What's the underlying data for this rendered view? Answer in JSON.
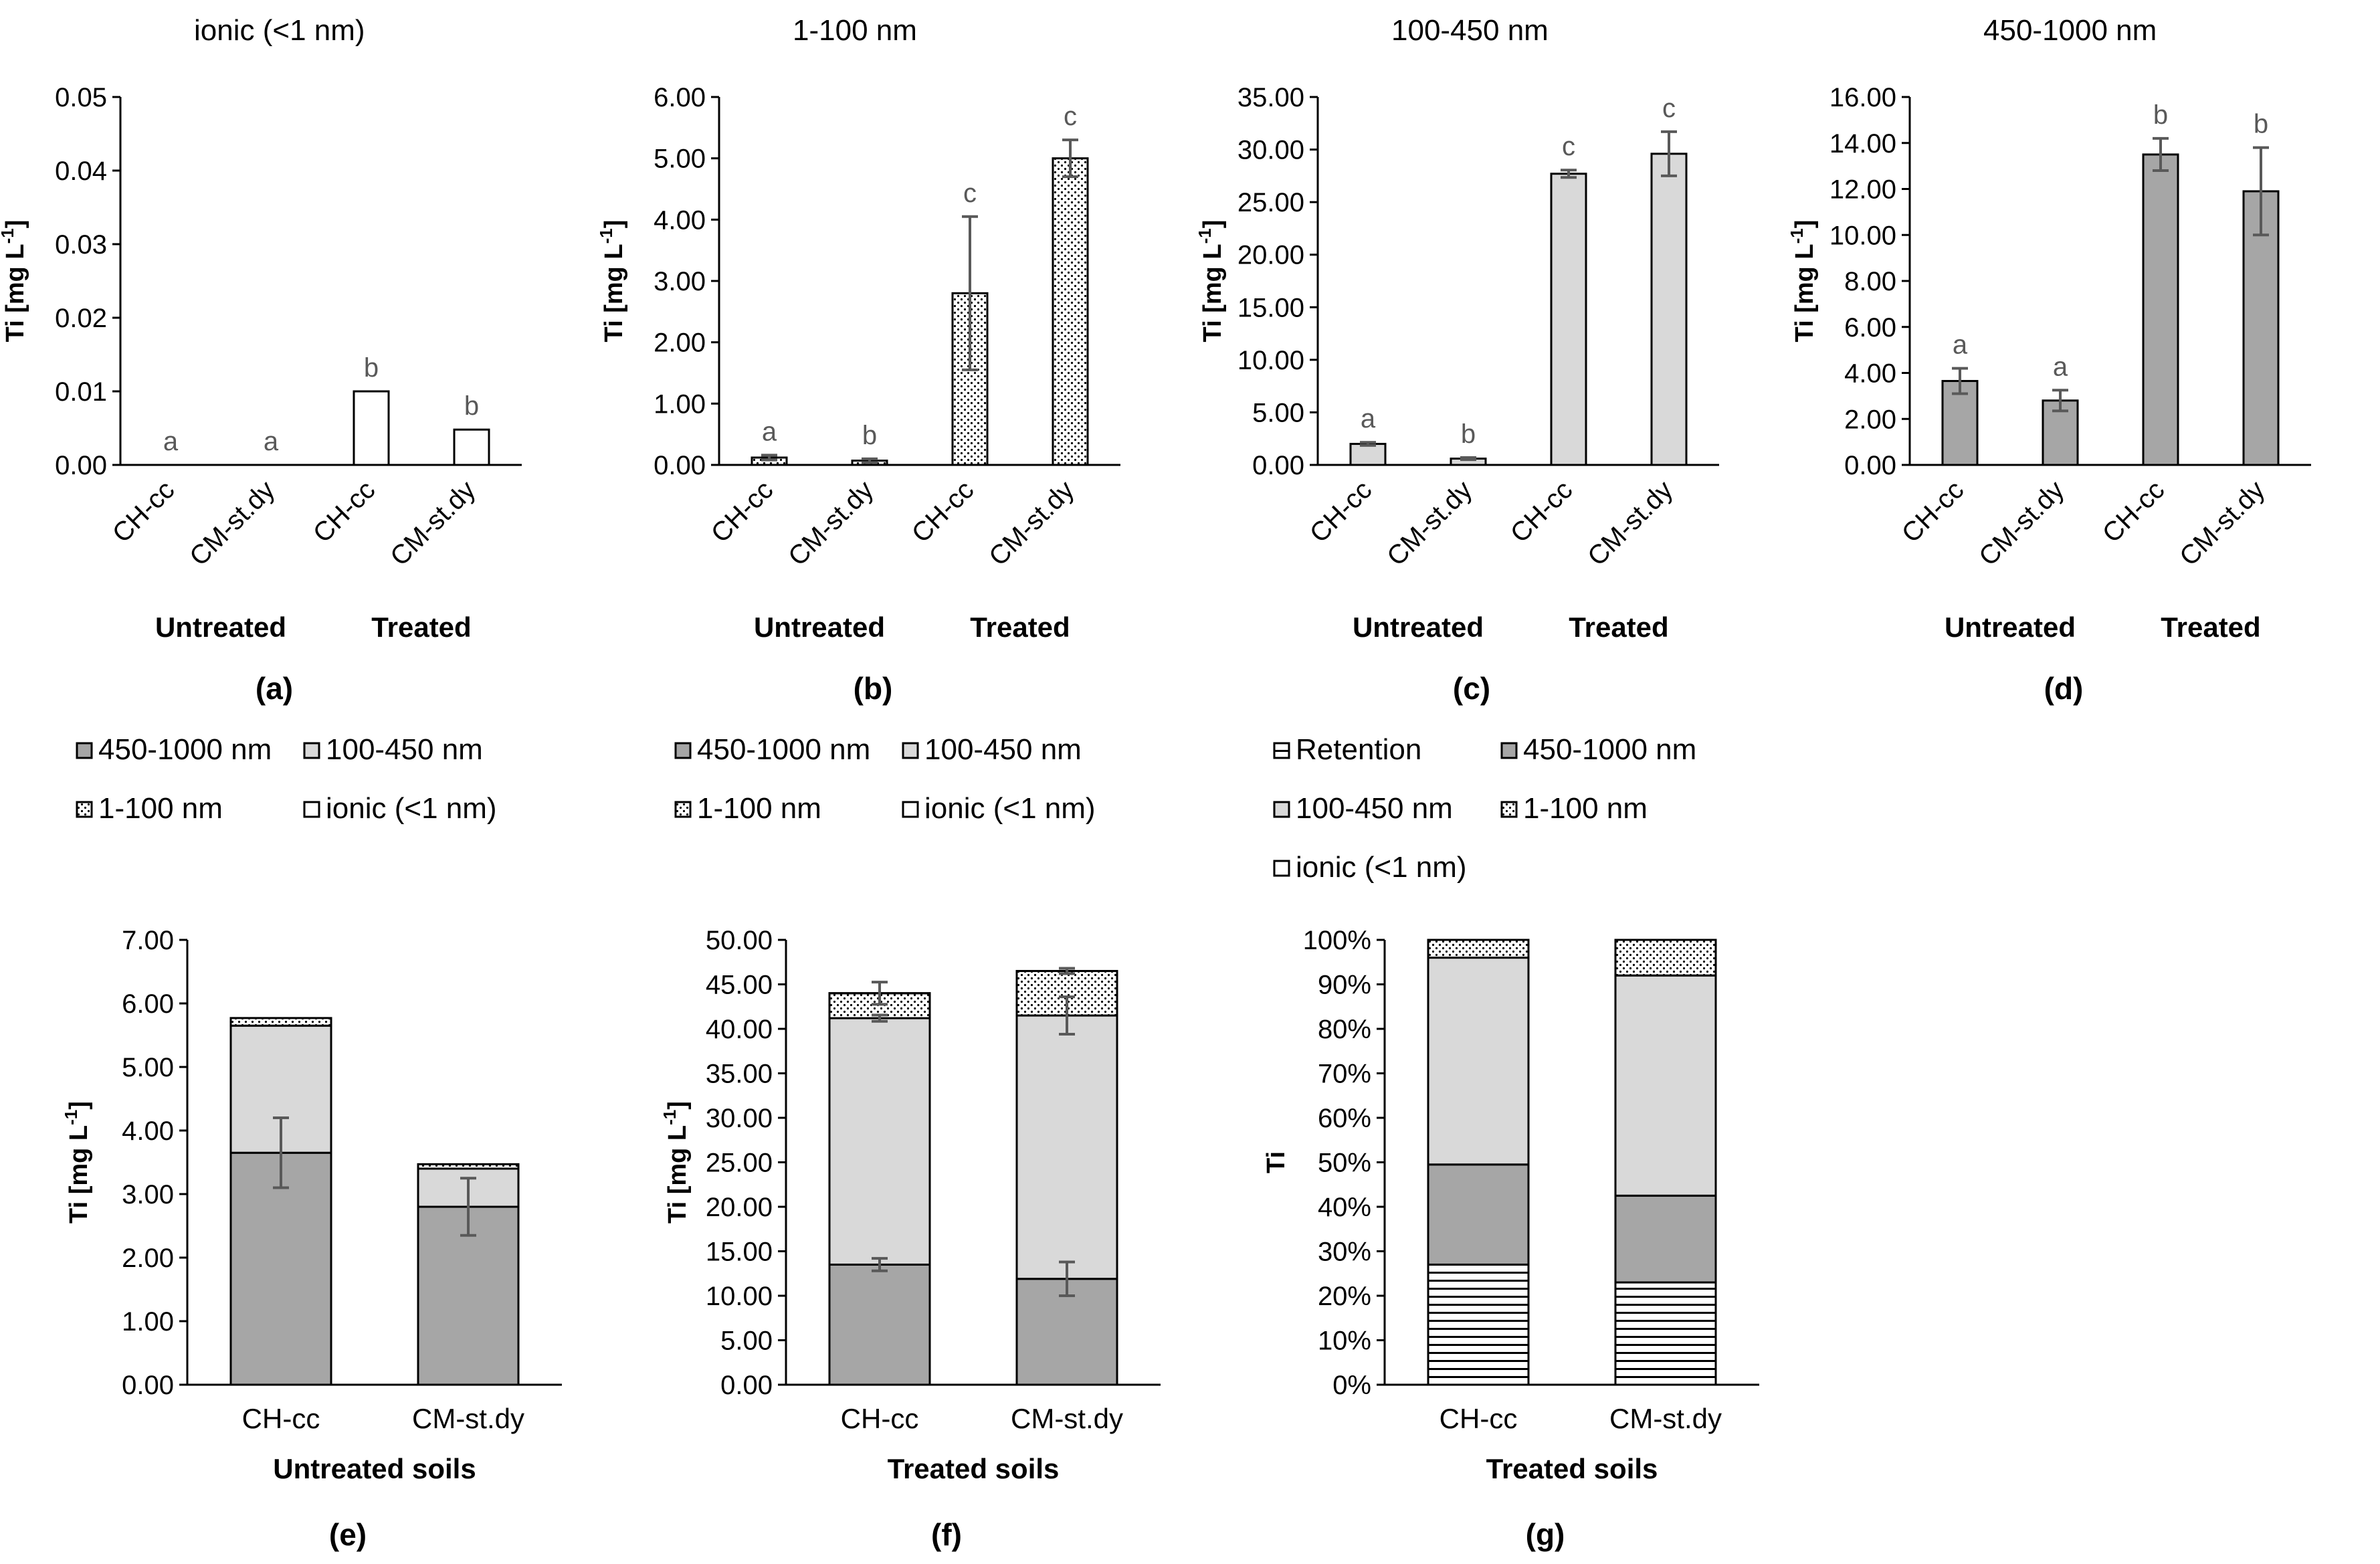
{
  "chart_data": [
    {
      "id": "a",
      "type": "bar",
      "title": "ionic (<1 nm)",
      "panel_label": "(a)",
      "ylabel": "Ti [mg L",
      "ylabel_sup": "-1",
      "ylabel_tail": "]",
      "ylim": [
        0,
        0.05
      ],
      "yticks": [
        "0.00",
        "0.01",
        "0.02",
        "0.03",
        "0.04",
        "0.05"
      ],
      "categories": [
        "CH-cc",
        "CM-st.dy",
        "CH-cc",
        "CM-st.dy"
      ],
      "groups": [
        "Untreated",
        "Treated"
      ],
      "values": [
        0.0,
        0.0,
        0.01,
        0.0048
      ],
      "errors": [
        0,
        0,
        0,
        0
      ],
      "letters": [
        "a",
        "a",
        "b",
        "b"
      ],
      "fill": "white"
    },
    {
      "id": "b",
      "type": "bar",
      "title": "1-100 nm",
      "panel_label": "(b)",
      "ylabel": "Ti [mg L",
      "ylabel_sup": "-1",
      "ylabel_tail": "]",
      "ylim": [
        0,
        6
      ],
      "yticks": [
        "0.00",
        "1.00",
        "2.00",
        "3.00",
        "4.00",
        "5.00",
        "6.00"
      ],
      "categories": [
        "CH-cc",
        "CM-st.dy",
        "CH-cc",
        "CM-st.dy"
      ],
      "groups": [
        "Untreated",
        "Treated"
      ],
      "values": [
        0.12,
        0.07,
        2.8,
        5.0
      ],
      "errors": [
        0.04,
        0.03,
        1.25,
        0.3
      ],
      "letters": [
        "a",
        "b",
        "c",
        "c"
      ],
      "fill": "dots"
    },
    {
      "id": "c",
      "type": "bar",
      "title": "100-450 nm",
      "panel_label": "(c)",
      "ylabel": "Ti [mg L",
      "ylabel_sup": "-1",
      "ylabel_tail": "]",
      "ylim": [
        0,
        35
      ],
      "yticks": [
        "0.00",
        "5.00",
        "10.00",
        "15.00",
        "20.00",
        "25.00",
        "30.00",
        "35.00"
      ],
      "categories": [
        "CH-cc",
        "CM-st.dy",
        "CH-cc",
        "CM-st.dy"
      ],
      "groups": [
        "Untreated",
        "Treated"
      ],
      "values": [
        2.0,
        0.6,
        27.7,
        29.6
      ],
      "errors": [
        0.15,
        0.1,
        0.35,
        2.1
      ],
      "letters": [
        "a",
        "b",
        "c",
        "c"
      ],
      "fill": "light"
    },
    {
      "id": "d",
      "type": "bar",
      "title": "450-1000 nm",
      "panel_label": "(d)",
      "ylabel": "Ti [mg L",
      "ylabel_sup": "-1",
      "ylabel_tail": "]",
      "ylim": [
        0,
        16
      ],
      "yticks": [
        "0.00",
        "2.00",
        "4.00",
        "6.00",
        "8.00",
        "10.00",
        "12.00",
        "14.00",
        "16.00"
      ],
      "categories": [
        "CH-cc",
        "CM-st.dy",
        "CH-cc",
        "CM-st.dy"
      ],
      "groups": [
        "Untreated",
        "Treated"
      ],
      "values": [
        3.65,
        2.8,
        13.5,
        11.9
      ],
      "errors": [
        0.55,
        0.45,
        0.7,
        1.9
      ],
      "letters": [
        "a",
        "a",
        "b",
        "b"
      ],
      "fill": "dark"
    },
    {
      "id": "e",
      "type": "bar",
      "stacked": true,
      "panel_label": "(e)",
      "ylabel": "Ti [mg L",
      "ylabel_sup": "-1",
      "ylabel_tail": "]",
      "xlabel": "Untreated soils",
      "ylim": [
        0,
        7
      ],
      "yticks": [
        "0.00",
        "1.00",
        "2.00",
        "3.00",
        "4.00",
        "5.00",
        "6.00",
        "7.00"
      ],
      "categories": [
        "CH-cc",
        "CM-st.dy"
      ],
      "legend": [
        {
          "name": "450-1000 nm",
          "fill": "dark"
        },
        {
          "name": "100-450 nm",
          "fill": "light"
        },
        {
          "name": "1-100 nm",
          "fill": "dots"
        },
        {
          "name": "ionic (<1 nm)",
          "fill": "white"
        }
      ],
      "series": [
        {
          "name": "450-1000 nm",
          "fill": "dark",
          "values": [
            3.65,
            2.8
          ],
          "errors": [
            0.55,
            0.45
          ]
        },
        {
          "name": "100-450 nm",
          "fill": "light",
          "values": [
            2.0,
            0.6
          ],
          "errors": [
            0,
            0
          ]
        },
        {
          "name": "1-100 nm",
          "fill": "dots",
          "values": [
            0.12,
            0.07
          ],
          "errors": [
            0,
            0
          ]
        },
        {
          "name": "ionic (<1 nm)",
          "fill": "white",
          "values": [
            0.0,
            0.0
          ],
          "errors": [
            0,
            0
          ]
        }
      ]
    },
    {
      "id": "f",
      "type": "bar",
      "stacked": true,
      "panel_label": "(f)",
      "ylabel": "Ti [mg L",
      "ylabel_sup": "-1",
      "ylabel_tail": "]",
      "xlabel": "Treated soils",
      "ylim": [
        0,
        50
      ],
      "yticks": [
        "0.00",
        "5.00",
        "10.00",
        "15.00",
        "20.00",
        "25.00",
        "30.00",
        "35.00",
        "40.00",
        "45.00",
        "50.00"
      ],
      "categories": [
        "CH-cc",
        "CM-st.dy"
      ],
      "legend": [
        {
          "name": "450-1000 nm",
          "fill": "dark"
        },
        {
          "name": "100-450 nm",
          "fill": "light"
        },
        {
          "name": "1-100 nm",
          "fill": "dots"
        },
        {
          "name": "ionic (<1 nm)",
          "fill": "white"
        }
      ],
      "series": [
        {
          "name": "450-1000 nm",
          "fill": "dark",
          "values": [
            13.5,
            11.9
          ],
          "errors": [
            0.7,
            1.9
          ]
        },
        {
          "name": "100-450 nm",
          "fill": "light",
          "values": [
            27.7,
            29.6
          ],
          "errors": [
            0.35,
            2.1
          ]
        },
        {
          "name": "1-100 nm",
          "fill": "dots",
          "values": [
            2.8,
            5.0
          ],
          "errors": [
            1.25,
            0.3
          ]
        },
        {
          "name": "ionic (<1 nm)",
          "fill": "white",
          "values": [
            0.01,
            0.005
          ],
          "errors": [
            0,
            0
          ]
        }
      ]
    },
    {
      "id": "g",
      "type": "bar",
      "stacked": true,
      "percent": true,
      "panel_label": "(g)",
      "ylabel": "Ti",
      "ylabel_sup": "",
      "ylabel_tail": "",
      "xlabel": "Treated soils",
      "ylim": [
        0,
        100
      ],
      "yticks": [
        "0%",
        "10%",
        "20%",
        "30%",
        "40%",
        "50%",
        "60%",
        "70%",
        "80%",
        "90%",
        "100%"
      ],
      "categories": [
        "CH-cc",
        "CM-st.dy"
      ],
      "legend": [
        {
          "name": "Retention",
          "fill": "stripes"
        },
        {
          "name": "450-1000 nm",
          "fill": "dark"
        },
        {
          "name": "100-450 nm",
          "fill": "light"
        },
        {
          "name": "1-100 nm",
          "fill": "dots"
        },
        {
          "name": "ionic (<1 nm)",
          "fill": "white"
        }
      ],
      "series": [
        {
          "name": "Retention",
          "fill": "stripes",
          "values": [
            27.0,
            23.0
          ],
          "errors": [
            0,
            0
          ]
        },
        {
          "name": "450-1000 nm",
          "fill": "dark",
          "values": [
            22.5,
            19.5
          ],
          "errors": [
            0,
            0
          ]
        },
        {
          "name": "100-450 nm",
          "fill": "light",
          "values": [
            46.5,
            49.5
          ],
          "errors": [
            0,
            0
          ]
        },
        {
          "name": "1-100 nm",
          "fill": "dots",
          "values": [
            4.0,
            8.0
          ],
          "errors": [
            0,
            0
          ]
        },
        {
          "name": "ionic (<1 nm)",
          "fill": "white",
          "values": [
            0.0,
            0.0
          ],
          "errors": [
            0,
            0
          ]
        }
      ]
    }
  ],
  "colors": {
    "dark": "#a6a6a6",
    "light": "#d9d9d9",
    "white": "#ffffff",
    "axis": "#bfbfbf",
    "text": "#000000",
    "letter": "#595959",
    "error": "#595959"
  }
}
